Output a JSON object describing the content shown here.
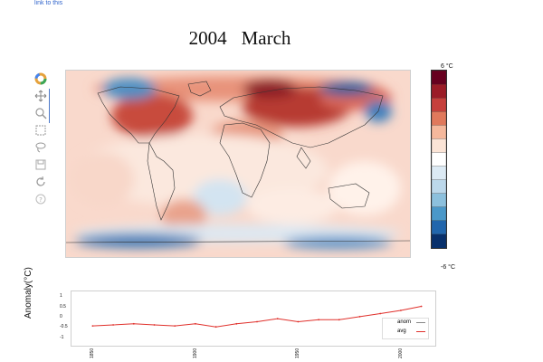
{
  "header": {
    "link_text": "link to this"
  },
  "map": {
    "year": "2004",
    "month": "March"
  },
  "toolbar": {
    "tools": [
      "logo-icon",
      "pan-icon",
      "zoom-icon",
      "box-zoom-icon",
      "lasso-icon",
      "save-icon",
      "reset-icon",
      "help-icon"
    ]
  },
  "colorbar": {
    "max_label": "6 °C",
    "min_label": "-6 °C",
    "colors": [
      "#67001f",
      "#9b1c27",
      "#c6403c",
      "#e0795c",
      "#f5b89c",
      "#fbe4d6",
      "#ffffff",
      "#dceaf4",
      "#bcd8eb",
      "#8cc0dd",
      "#4a98c9",
      "#2166ac",
      "#08306b"
    ]
  },
  "lineplot": {
    "ylabel": "Anomaly(°C)",
    "yticks": [
      "1",
      "0.5",
      "0",
      "-0.5",
      "-1"
    ],
    "xticks": [
      "1850",
      "1900",
      "1950",
      "2000"
    ],
    "legend": {
      "anom_label": "anom",
      "avg_label": "avg"
    },
    "colors": {
      "anom": "#888888",
      "avg": "#e0302b"
    }
  },
  "chart_data": {
    "type": "line",
    "title": "",
    "xlabel": "",
    "ylabel": "Anomaly(°C)",
    "xlim": [
      1845,
      2015
    ],
    "ylim": [
      -1.1,
      1.1
    ],
    "series": [
      {
        "name": "avg",
        "x": [
          1850,
          1860,
          1870,
          1880,
          1890,
          1900,
          1910,
          1920,
          1930,
          1940,
          1950,
          1960,
          1970,
          1980,
          1990,
          2000,
          2010
        ],
        "y": [
          -0.4,
          -0.35,
          -0.3,
          -0.35,
          -0.4,
          -0.3,
          -0.45,
          -0.3,
          -0.2,
          -0.05,
          -0.2,
          -0.1,
          -0.1,
          0.05,
          0.2,
          0.35,
          0.55
        ]
      }
    ]
  }
}
